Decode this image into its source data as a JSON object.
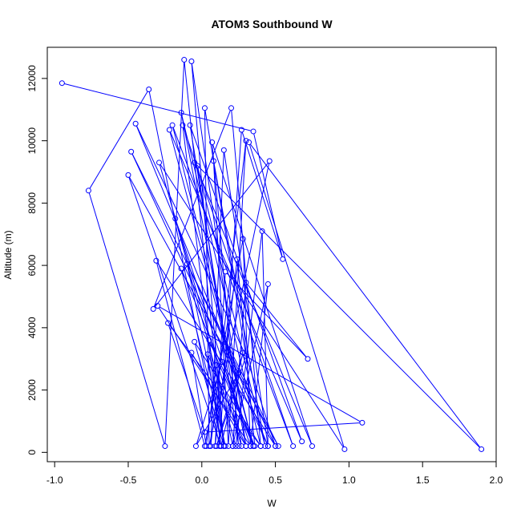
{
  "chart_data": {
    "type": "line",
    "title": "ATOM3 Southbound W",
    "xlabel": "W",
    "ylabel": "Altitude (m)",
    "xlim": [
      -1.05,
      2.0
    ],
    "ylim": [
      -300,
      13000
    ],
    "xticks": [
      -1.0,
      -0.5,
      0.0,
      0.5,
      1.0,
      1.5,
      2.0
    ],
    "xtick_labels": [
      "-1.0",
      "-0.5",
      "0.0",
      "0.5",
      "1.0",
      "1.5",
      "2.0"
    ],
    "yticks": [
      0,
      2000,
      4000,
      6000,
      8000,
      10000,
      12000
    ],
    "ytick_labels": [
      "0",
      "2000",
      "4000",
      "6000",
      "8000",
      "10000",
      "12000"
    ],
    "grid": false,
    "series": [
      {
        "color": "#0000ff",
        "marker": "open-circle",
        "points": [
          [
            -0.95,
            11850
          ],
          [
            0.35,
            10300
          ],
          [
            0.55,
            6200
          ],
          [
            0.27,
            10350
          ],
          [
            0.12,
            200
          ],
          [
            -0.36,
            11650
          ],
          [
            -0.77,
            8400
          ],
          [
            -0.25,
            200
          ],
          [
            -0.12,
            12600
          ],
          [
            0.15,
            200
          ],
          [
            -0.07,
            12550
          ],
          [
            0.3,
            200
          ],
          [
            -0.14,
            10900
          ],
          [
            0.4,
            200
          ],
          [
            0.2,
            11050
          ],
          [
            -0.33,
            4600
          ],
          [
            0.46,
            9350
          ],
          [
            0.05,
            200
          ],
          [
            0.02,
            11050
          ],
          [
            0.3,
            3100
          ],
          [
            -0.45,
            10550
          ],
          [
            0.45,
            200
          ],
          [
            -0.48,
            9650
          ],
          [
            0.52,
            200
          ],
          [
            -0.5,
            8900
          ],
          [
            0.13,
            200
          ],
          [
            -0.13,
            10500
          ],
          [
            0.62,
            200
          ],
          [
            -0.2,
            10500
          ],
          [
            0.35,
            200
          ],
          [
            -0.22,
            10350
          ],
          [
            0.68,
            350
          ],
          [
            -0.08,
            10500
          ],
          [
            0.27,
            200
          ],
          [
            -0.29,
            9300
          ],
          [
            0.97,
            100
          ],
          [
            0.32,
            9950
          ],
          [
            1.9,
            100
          ],
          [
            -0.05,
            9300
          ],
          [
            0.75,
            200
          ],
          [
            0.07,
            9950
          ],
          [
            0.25,
            200
          ],
          [
            -0.03,
            9200
          ],
          [
            0.43,
            200
          ],
          [
            0.08,
            9350
          ],
          [
            0.18,
            200
          ],
          [
            0.3,
            10000
          ],
          [
            0.06,
            200
          ],
          [
            0.15,
            9700
          ],
          [
            0.45,
            200
          ],
          [
            0.41,
            7100
          ],
          [
            0.23,
            200
          ],
          [
            -0.18,
            7500
          ],
          [
            0.33,
            200
          ],
          [
            0.28,
            6850
          ],
          [
            0.02,
            200
          ],
          [
            -0.31,
            6150
          ],
          [
            0.5,
            200
          ],
          [
            -0.1,
            6050
          ],
          [
            0.16,
            200
          ],
          [
            -0.14,
            5900
          ],
          [
            0.36,
            200
          ],
          [
            0.24,
            6200
          ],
          [
            0.09,
            200
          ],
          [
            0.16,
            5800
          ],
          [
            0.72,
            3000
          ],
          [
            0.3,
            5450
          ],
          [
            0.21,
            200
          ],
          [
            0.45,
            5400
          ],
          [
            0.33,
            200
          ],
          [
            -0.3,
            4700
          ],
          [
            1.09,
            950
          ],
          [
            0.02,
            650
          ],
          [
            -0.23,
            4150
          ],
          [
            0.4,
            200
          ],
          [
            -0.05,
            3550
          ],
          [
            0.15,
            200
          ],
          [
            0.05,
            3600
          ],
          [
            0.35,
            200
          ],
          [
            0.14,
            2900
          ],
          [
            -0.04,
            200
          ],
          [
            0.25,
            2550
          ],
          [
            0.21,
            200
          ],
          [
            0.1,
            2800
          ],
          [
            0.03,
            200
          ],
          [
            -0.07,
            3200
          ],
          [
            0.3,
            200
          ],
          [
            0.04,
            3150
          ],
          [
            0.13,
            200
          ],
          [
            0.28,
            3200
          ],
          [
            0.1,
            200
          ],
          [
            0.3,
            3100
          ],
          [
            0.5,
            200
          ]
        ]
      }
    ]
  }
}
